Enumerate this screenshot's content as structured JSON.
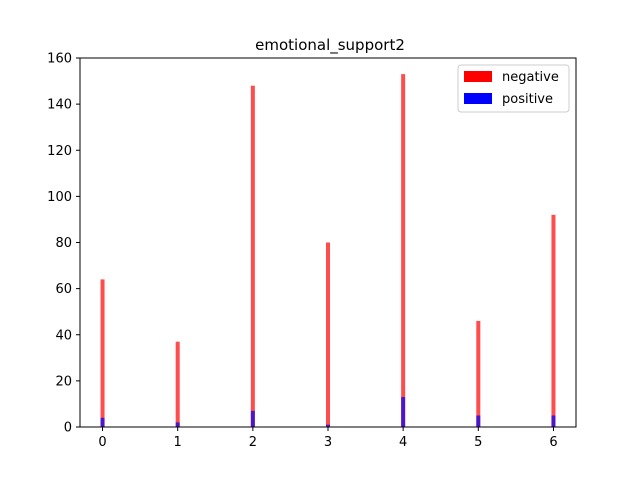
{
  "chart_data": {
    "type": "bar",
    "title": "emotional_support2",
    "xlabel": "",
    "ylabel": "",
    "x": [
      0,
      1,
      2,
      3,
      4,
      5,
      6
    ],
    "x_ticks": [
      "0",
      "1",
      "2",
      "3",
      "4",
      "5",
      "6"
    ],
    "ylim": [
      0,
      160
    ],
    "xlim": [
      -0.3,
      6.3
    ],
    "y_ticks": [
      "0",
      "20",
      "40",
      "60",
      "80",
      "100",
      "120",
      "140",
      "160"
    ],
    "series": [
      {
        "name": "negative",
        "color": "#ff0000",
        "values": [
          64,
          37,
          148,
          80,
          153,
          46,
          92
        ]
      },
      {
        "name": "positive",
        "color": "#0000ff",
        "values": [
          4,
          2,
          7,
          1,
          13,
          5,
          5
        ]
      }
    ],
    "legend_position": "upper-right",
    "grid": false,
    "bar_alpha": 0.7
  }
}
